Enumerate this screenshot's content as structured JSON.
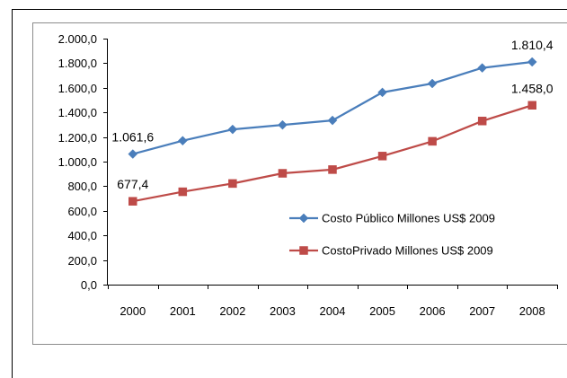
{
  "chart_data": {
    "type": "line",
    "x": [
      "2000",
      "2001",
      "2002",
      "2003",
      "2004",
      "2005",
      "2006",
      "2007",
      "2008"
    ],
    "ylim": [
      0,
      2000
    ],
    "yticks": [
      "0,0",
      "200,0",
      "400,0",
      "600,0",
      "800,0",
      "1.000,0",
      "1.200,0",
      "1.400,0",
      "1.600,0",
      "1.800,0",
      "2.000,0"
    ],
    "grid": false,
    "legend_position": "center-right",
    "series": [
      {
        "name": "Costo Público Millones US$ 2009",
        "color": "#4A7EBB",
        "marker": "diamond",
        "values": [
          1061.6,
          1170,
          1262,
          1298,
          1335,
          1563,
          1635,
          1762,
          1810.4
        ],
        "labels": [
          {
            "index": 0,
            "text": "1.061,6",
            "position": "above"
          },
          {
            "index": 8,
            "text": "1.810,4",
            "position": "above"
          }
        ]
      },
      {
        "name": "CostoPrivado Millones US$ 2009",
        "color": "#BE4B48",
        "marker": "square",
        "values": [
          677.4,
          755,
          822,
          905,
          935,
          1045,
          1165,
          1330,
          1458.0
        ],
        "labels": [
          {
            "index": 0,
            "text": "677,4",
            "position": "above"
          },
          {
            "index": 8,
            "text": "1.458,0",
            "position": "above"
          }
        ]
      }
    ]
  }
}
